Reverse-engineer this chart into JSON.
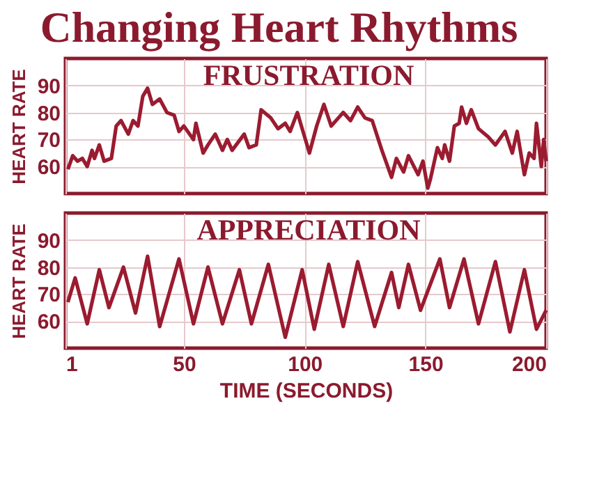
{
  "chart_data": [
    {
      "type": "line",
      "title": "Changing Heart Rhythms",
      "subtitle": "FRUSTRATION",
      "ylabel": "HEART RATE",
      "x": [
        2,
        4,
        6,
        8,
        10,
        12,
        13,
        15,
        17,
        20,
        22,
        24,
        27,
        29,
        31,
        33,
        35,
        37,
        40,
        43,
        46,
        48,
        50,
        54,
        55,
        58,
        60,
        63,
        66,
        68,
        70,
        75,
        77,
        80,
        82,
        86,
        89,
        92,
        94,
        97,
        99,
        102,
        105,
        108,
        111,
        114,
        116,
        119,
        122,
        125,
        128,
        132,
        136,
        138,
        141,
        143,
        147,
        149,
        151,
        152,
        155,
        157,
        158,
        160,
        162,
        164,
        165,
        167,
        169,
        172,
        176,
        179,
        183,
        186,
        188,
        191,
        193,
        195,
        196,
        198,
        199,
        200
      ],
      "series": [
        {
          "color": "#9b1b30",
          "values": [
            59,
            64,
            62,
            63,
            60,
            66,
            63,
            68,
            62,
            63,
            75,
            77,
            72,
            77,
            75,
            86,
            89,
            83,
            85,
            80,
            79,
            73,
            75,
            70,
            76,
            65,
            68,
            72,
            66,
            70,
            66,
            72,
            67,
            68,
            81,
            78,
            74,
            76,
            73,
            80,
            74,
            65,
            75,
            83,
            75,
            78,
            80,
            77,
            82,
            78,
            77,
            66,
            56,
            63,
            58,
            64,
            57,
            62,
            52,
            55,
            67,
            63,
            68,
            62,
            75,
            76,
            82,
            76,
            81,
            74,
            71,
            68,
            73,
            65,
            73,
            57,
            65,
            63,
            76,
            60,
            70,
            62
          ]
        }
      ],
      "xlim": [
        1,
        200
      ],
      "xticks": [
        1,
        50,
        100,
        150,
        200
      ],
      "ylim": [
        50,
        100
      ],
      "yticks": [
        60,
        70,
        80,
        90
      ],
      "grid": true,
      "tick_labels": "y"
    },
    {
      "type": "line",
      "title": "APPRECIATION",
      "ylabel": "HEART RATE",
      "xlabel": "TIME (SECONDS)",
      "x": [
        2,
        5,
        10,
        15,
        19,
        25,
        30,
        35,
        40,
        48,
        54,
        60,
        66,
        73,
        78,
        85,
        92,
        99,
        104,
        110,
        116,
        122,
        129,
        136,
        139,
        143,
        148,
        156,
        160,
        166,
        172,
        179,
        185,
        191,
        196,
        200
      ],
      "series": [
        {
          "color": "#9b1b30",
          "values": [
            67,
            76,
            59,
            79,
            65,
            80,
            63,
            84,
            58,
            83,
            59,
            80,
            59,
            79,
            59,
            81,
            54,
            79,
            57,
            81,
            58,
            82,
            58,
            78,
            65,
            81,
            64,
            83,
            65,
            83,
            59,
            82,
            56,
            79,
            57,
            64
          ]
        }
      ],
      "xlim": [
        1,
        200
      ],
      "xticks": [
        1,
        50,
        100,
        150,
        200
      ],
      "ylim": [
        50,
        100
      ],
      "yticks": [
        60,
        70,
        80,
        90
      ],
      "grid": true
    }
  ]
}
